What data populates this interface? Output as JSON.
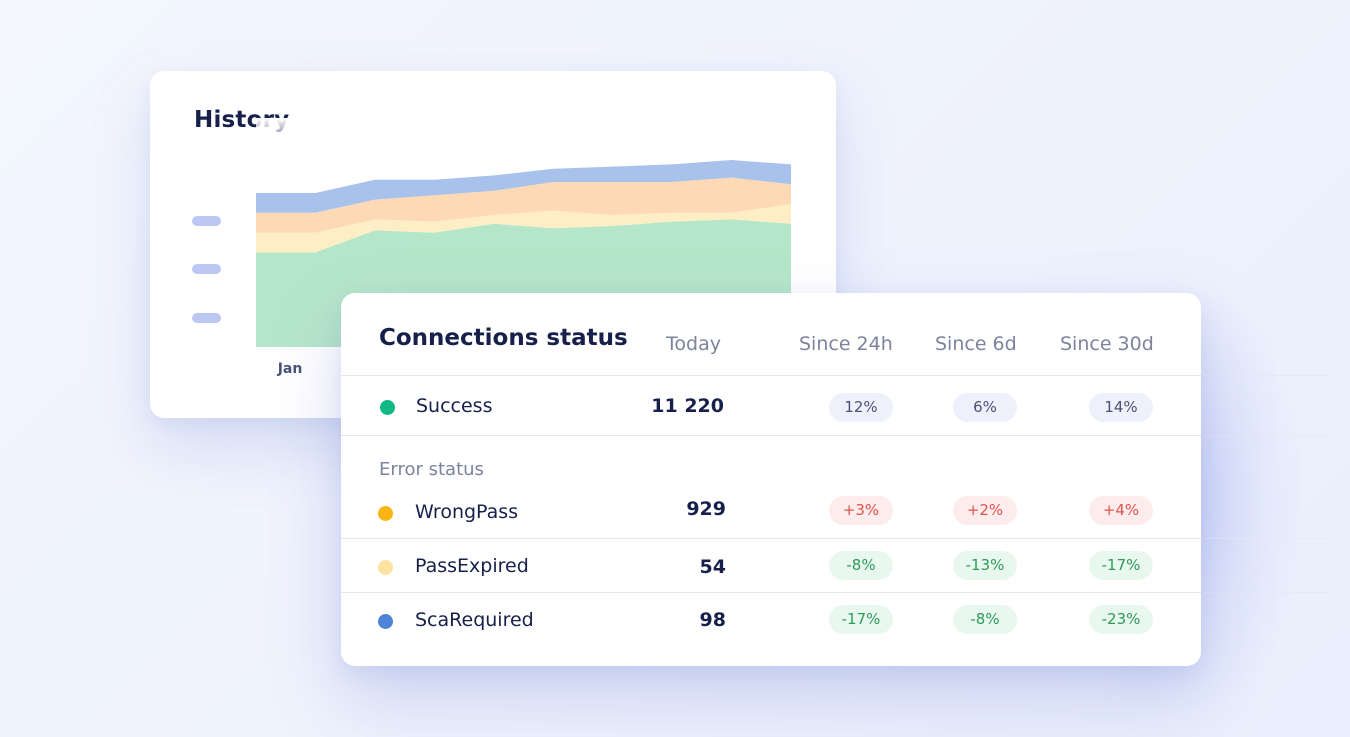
{
  "history": {
    "title": "History",
    "x_label": "Jan",
    "chart_data": {
      "type": "area",
      "stacked": true,
      "title": "History",
      "x_tick_labels": [
        "Jan"
      ],
      "series": [
        {
          "color": "#b6e6c9",
          "values": [
            43,
            43,
            53,
            52,
            56,
            54,
            55,
            57,
            58,
            56
          ]
        },
        {
          "color": "#fdeec5",
          "values": [
            9,
            9,
            5,
            5,
            4,
            8,
            5,
            4,
            3,
            9
          ]
        },
        {
          "color": "#fdd9b5",
          "values": [
            9,
            9,
            9,
            12,
            11,
            13,
            15,
            14,
            16,
            9
          ]
        },
        {
          "color": "#a9c2eb",
          "values": [
            9,
            9,
            9,
            7,
            7,
            6,
            7,
            8,
            8,
            9
          ]
        }
      ],
      "ylim": [
        0,
        100
      ],
      "grid": false,
      "legend": "left"
    }
  },
  "connections": {
    "title": "Connections status",
    "columns": [
      "Today",
      "Since 24h",
      "Since 6d",
      "Since 30d"
    ],
    "error_section_label": "Error status",
    "rows": [
      {
        "label": "Success",
        "value": "11 220",
        "dot_color": "#12b886",
        "changes": [
          {
            "text": "12%",
            "tone": "neutral"
          },
          {
            "text": "6%",
            "tone": "neutral"
          },
          {
            "text": "14%",
            "tone": "neutral"
          }
        ]
      },
      {
        "label": "WrongPass",
        "value": "929",
        "dot_color": "#f8b514",
        "changes": [
          {
            "text": "+3%",
            "tone": "bad"
          },
          {
            "text": "+2%",
            "tone": "bad"
          },
          {
            "text": "+4%",
            "tone": "bad"
          }
        ]
      },
      {
        "label": "PassExpired",
        "value": "54",
        "dot_color": "#fde3a1",
        "changes": [
          {
            "text": "-8%",
            "tone": "good"
          },
          {
            "text": "-13%",
            "tone": "good"
          },
          {
            "text": "-17%",
            "tone": "good"
          }
        ]
      },
      {
        "label": "ScaRequired",
        "value": "98",
        "dot_color": "#4f83d8",
        "changes": [
          {
            "text": "-17%",
            "tone": "good"
          },
          {
            "text": "-8%",
            "tone": "good"
          },
          {
            "text": "-23%",
            "tone": "good"
          }
        ]
      }
    ]
  }
}
